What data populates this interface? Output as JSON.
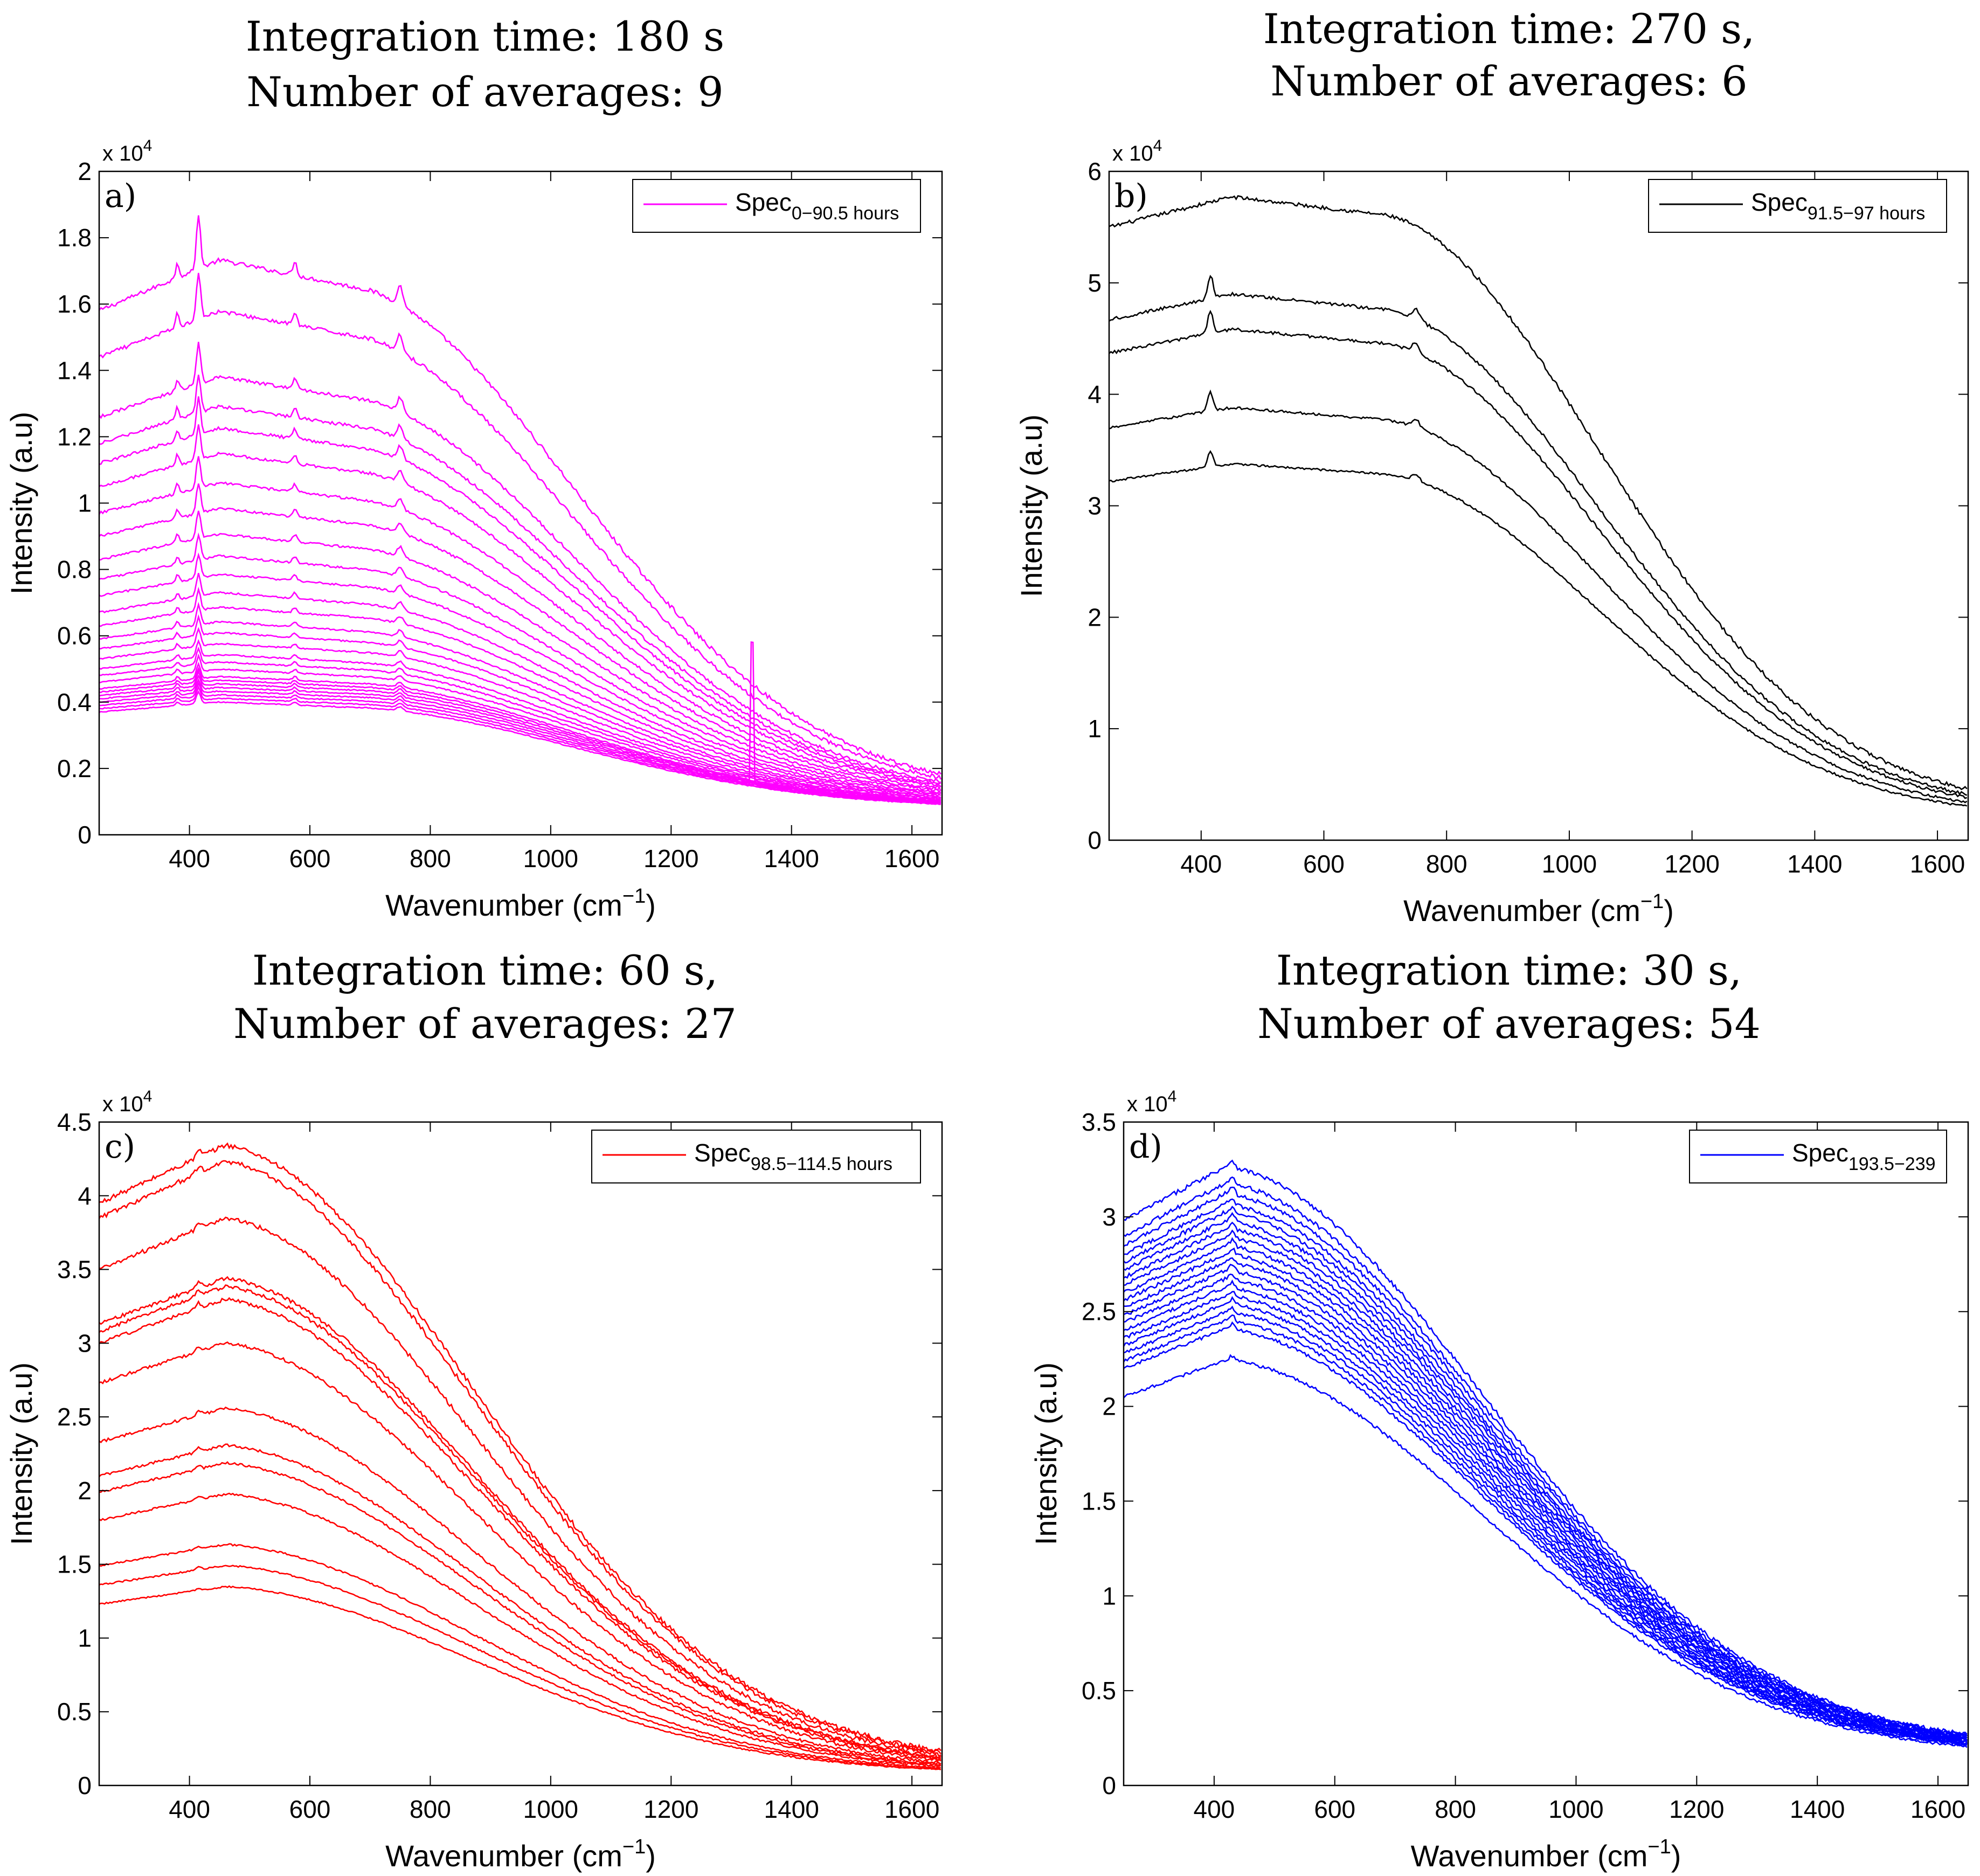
{
  "chart_data": [
    {
      "id": "a",
      "type": "line",
      "panel_label": "a)",
      "title_line1": "Integration time:  180 s",
      "title_line2": "Number of averages:  9",
      "xlabel": "Wavenumber (cm",
      "xlabel_sup": "−1",
      "xlabel_end": ")",
      "ylabel": "Intensity (a.u)",
      "y_multiplier": "x 10",
      "y_multiplier_exp": "4",
      "xlim": [
        250,
        1650
      ],
      "ylim": [
        0,
        2
      ],
      "xticks": [
        400,
        600,
        800,
        1000,
        1200,
        1400,
        1600
      ],
      "xtick_labels": [
        "400",
        "600",
        "800",
        "1000",
        "1200",
        "1400",
        "1600"
      ],
      "yticks": [
        0,
        0.2,
        0.4,
        0.6,
        0.8,
        1,
        1.2,
        1.4,
        1.6,
        1.8,
        2
      ],
      "ytick_labels": [
        "0",
        "0.2",
        "0.4",
        "0.6",
        "0.8",
        "1",
        "1.2",
        "1.4",
        "1.6",
        "1.8",
        "2"
      ],
      "color": "#ff00ff",
      "legend": {
        "name": "Spec",
        "subscript": "0−90.5 hours",
        "position": "top-right"
      },
      "series_start_values": [
        1.58,
        1.44,
        1.26,
        1.18,
        1.12,
        1.05,
        0.97,
        0.9,
        0.83,
        0.77,
        0.72,
        0.67,
        0.63,
        0.59,
        0.56,
        0.53,
        0.5,
        0.48,
        0.46,
        0.44,
        0.43,
        0.42,
        0.41,
        0.4,
        0.39,
        0.38,
        0.37
      ],
      "series_end_values": [
        0.12,
        0.115,
        0.11,
        0.108,
        0.105,
        0.103,
        0.1,
        0.098,
        0.096,
        0.094,
        0.092,
        0.09,
        0.09,
        0.088,
        0.088,
        0.086,
        0.086,
        0.085,
        0.085,
        0.084,
        0.084,
        0.083,
        0.083,
        0.082,
        0.082,
        0.081,
        0.08
      ],
      "peak_wavenumbers": [
        380,
        415,
        575,
        750
      ],
      "spike": {
        "x": 1335,
        "y": 0.58
      }
    },
    {
      "id": "b",
      "type": "line",
      "panel_label": "b)",
      "title_line1": "Integration time:  270 s,",
      "title_line2": "Number of averages:  6",
      "xlabel": "Wavenumber (cm",
      "xlabel_sup": "−1",
      "xlabel_end": ")",
      "ylabel": "Intensity (a.u)",
      "y_multiplier": "x 10",
      "y_multiplier_exp": "4",
      "xlim": [
        250,
        1650
      ],
      "ylim": [
        0,
        6
      ],
      "xticks": [
        400,
        600,
        800,
        1000,
        1200,
        1400,
        1600
      ],
      "xtick_labels": [
        "400",
        "600",
        "800",
        "1000",
        "1200",
        "1400",
        "1600"
      ],
      "yticks": [
        0,
        1,
        2,
        3,
        4,
        5,
        6
      ],
      "ytick_labels": [
        "0",
        "1",
        "2",
        "3",
        "4",
        "5",
        "6"
      ],
      "color": "#000000",
      "legend": {
        "name": "Spec",
        "subscript": "91.5−97 hours",
        "position": "top-right"
      },
      "series_start_values": [
        5.5,
        4.67,
        4.37,
        3.7,
        3.22
      ],
      "series_end_values": [
        0.28,
        0.26,
        0.24,
        0.22,
        0.2
      ],
      "peak_wavenumbers": [
        415,
        750
      ]
    },
    {
      "id": "c",
      "type": "line",
      "panel_label": "c)",
      "title_line1": "Integration time:  60 s,",
      "title_line2": "Number of averages:  27",
      "xlabel": "Wavenumber (cm",
      "xlabel_sup": "−1",
      "xlabel_end": ")",
      "ylabel": "Intensity (a.u)",
      "y_multiplier": "x 10",
      "y_multiplier_exp": "4",
      "xlim": [
        250,
        1650
      ],
      "ylim": [
        0,
        4.5
      ],
      "xticks": [
        400,
        600,
        800,
        1000,
        1200,
        1400,
        1600
      ],
      "xtick_labels": [
        "400",
        "600",
        "800",
        "1000",
        "1200",
        "1400",
        "1600"
      ],
      "yticks": [
        0,
        0.5,
        1,
        1.5,
        2,
        2.5,
        3,
        3.5,
        4,
        4.5
      ],
      "ytick_labels": [
        "0",
        "0.5",
        "1",
        "1.5",
        "2",
        "2.5",
        "3",
        "3.5",
        "4",
        "4.5"
      ],
      "color": "#ff0000",
      "legend": {
        "name": "Spec",
        "subscript": "98.5−114.5 hours",
        "position": "top-right"
      },
      "series_start_values": [
        3.95,
        3.85,
        3.5,
        3.13,
        3.08,
        3.0,
        2.73,
        2.33,
        2.1,
        1.99,
        1.8,
        1.49,
        1.36,
        1.23
      ],
      "series_end_values": [
        0.14,
        0.13,
        0.125,
        0.12,
        0.115,
        0.11,
        0.105,
        0.1,
        0.095,
        0.09,
        0.088,
        0.085,
        0.082,
        0.08
      ],
      "peak_wavenumbers": [
        415
      ]
    },
    {
      "id": "d",
      "type": "line",
      "panel_label": "d)",
      "title_line1": "Integration time:  30 s,",
      "title_line2": "Number of averages:  54",
      "xlabel": "Wavenumber (cm",
      "xlabel_sup": "−1",
      "xlabel_end": ")",
      "ylabel": "Intensity (a.u)",
      "y_multiplier": "x 10",
      "y_multiplier_exp": "4",
      "xlim": [
        250,
        1650
      ],
      "ylim": [
        0,
        3.5
      ],
      "xticks": [
        400,
        600,
        800,
        1000,
        1200,
        1400,
        1600
      ],
      "xtick_labels": [
        "400",
        "600",
        "800",
        "1000",
        "1200",
        "1400",
        "1600"
      ],
      "yticks": [
        0,
        0.5,
        1,
        1.5,
        2,
        2.5,
        3,
        3.5
      ],
      "ytick_labels": [
        "0",
        "0.5",
        "1",
        "1.5",
        "2",
        "2.5",
        "3",
        "3.5"
      ],
      "color": "#0000ff",
      "legend": {
        "name": "Spec",
        "subscript": "193.5−239",
        "position": "top-right"
      },
      "series_start_values": [
        2.98,
        2.9,
        2.85,
        2.8,
        2.76,
        2.72,
        2.68,
        2.64,
        2.6,
        2.56,
        2.52,
        2.48,
        2.44,
        2.4,
        2.36,
        2.32,
        2.28,
        2.24,
        2.2,
        2.05
      ],
      "series_end_values": [
        0.2,
        0.198,
        0.196,
        0.194,
        0.192,
        0.19,
        0.188,
        0.186,
        0.184,
        0.182,
        0.18,
        0.178,
        0.176,
        0.174,
        0.172,
        0.17,
        0.168,
        0.166,
        0.164,
        0.16
      ],
      "peak_wavenumbers": [
        430
      ]
    }
  ]
}
